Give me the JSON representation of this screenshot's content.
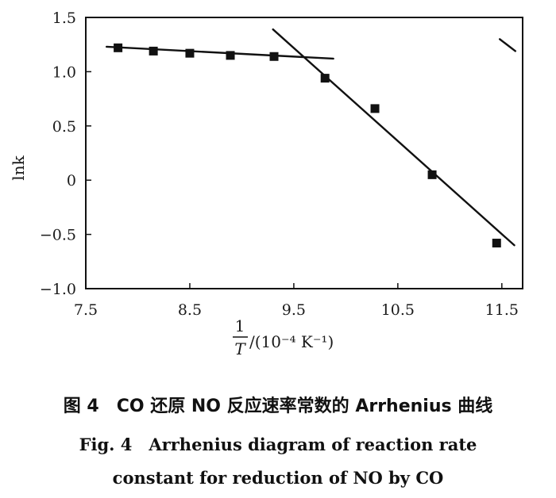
{
  "chart_data": {
    "type": "scatter",
    "xlabel_fraction_numerator": "1",
    "xlabel_fraction_denominator": "T",
    "xlabel_units": "/(10⁻⁴ K⁻¹)",
    "ylabel": "lnk",
    "xlim": [
      7.5,
      11.7
    ],
    "ylim": [
      -1.0,
      1.5
    ],
    "xticks": [
      7.5,
      8.5,
      9.5,
      10.5,
      11.5
    ],
    "xtick_labels": [
      "7.5",
      "8.5",
      "9.5",
      "10.5",
      "11.5"
    ],
    "yticks": [
      1.5,
      1.0,
      0.5,
      0,
      -0.5,
      -1.0
    ],
    "ytick_labels": [
      "1.5",
      "1.0",
      "0.5",
      "0",
      "−0.5",
      "−1.0"
    ],
    "points": {
      "x": [
        7.81,
        8.15,
        8.5,
        8.89,
        9.31,
        9.8,
        10.28,
        10.83,
        11.45
      ],
      "y": [
        1.22,
        1.19,
        1.17,
        1.15,
        1.14,
        0.94,
        0.66,
        0.05,
        -0.58
      ]
    },
    "fit_lines": [
      {
        "x": [
          7.7,
          9.88
        ],
        "y": [
          1.23,
          1.12
        ]
      },
      {
        "x": [
          9.3,
          11.62
        ],
        "y": [
          1.39,
          -0.6
        ]
      },
      {
        "x": [
          11.48,
          11.63
        ],
        "y": [
          1.3,
          1.19
        ]
      }
    ],
    "grid": false,
    "legend": "none"
  },
  "caption": {
    "cn": "图 4　CO 还原 NO 反应速率常数的 Arrhenius 曲线",
    "en_line1": "Fig. 4　Arrhenius diagram of reaction rate",
    "en_line2": "constant for reduction of NO by CO"
  }
}
